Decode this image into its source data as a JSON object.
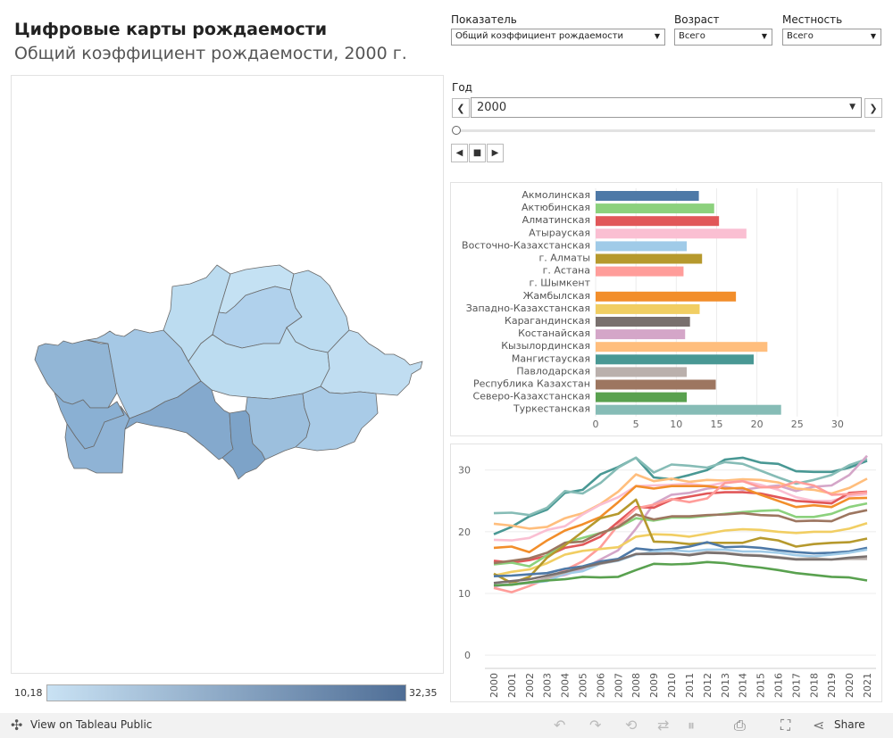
{
  "header": {
    "title": "Цифровые карты рождаемости",
    "subtitle": "Общий коэффициент рождаемости, 2000 г."
  },
  "filters": {
    "indicator": {
      "label": "Показатель",
      "value": "Общий коэффициент рождаемости"
    },
    "age": {
      "label": "Возраст",
      "value": "Всего"
    },
    "location": {
      "label": "Местность",
      "value": "Всего"
    }
  },
  "year": {
    "label": "Год",
    "value": "2000"
  },
  "legend": {
    "min": "10,18",
    "max": "32,35",
    "color_low": "#c9e2f4",
    "color_high": "#4f6e96"
  },
  "map": {
    "regions": [
      {
        "name": "Западно-Казахстанская",
        "color": "#92b6d6"
      },
      {
        "name": "Атырауская",
        "color": "#8ab0d3"
      },
      {
        "name": "Мангистауская",
        "color": "#8fb3d5"
      },
      {
        "name": "Актюбинская",
        "color": "#a5c8e5"
      },
      {
        "name": "Костанайская",
        "color": "#bcdcf0"
      },
      {
        "name": "Северо-Казахстанская",
        "color": "#c4e1f3"
      },
      {
        "name": "Акмолинская",
        "color": "#b0d1ec"
      },
      {
        "name": "Павлодарская",
        "color": "#bbdbf0"
      },
      {
        "name": "Карагандинская",
        "color": "#bcdcf0"
      },
      {
        "name": "Восточно-Казахстанская",
        "color": "#c0ddf1"
      },
      {
        "name": "Кызылординская",
        "color": "#84a9cd"
      },
      {
        "name": "Туркестанская",
        "color": "#7da3c8"
      },
      {
        "name": "Жамбылская",
        "color": "#9cbfdd"
      },
      {
        "name": "Алматинская",
        "color": "#a9cbe7"
      }
    ]
  },
  "footer": {
    "view_link": "View on Tableau Public",
    "share": "Share"
  },
  "chart_data": [
    {
      "type": "bar",
      "orientation": "horizontal",
      "categories": [
        "Акмолинская",
        "Актюбинская",
        "Алматинская",
        "Атырауская",
        "Восточно-Казахстанская",
        "г. Алматы",
        "г. Астана",
        "г. Шымкент",
        "Жамбылская",
        "Западно-Казахстанская",
        "Карагандинская",
        "Костанайская",
        "Кызылординская",
        "Мангистауская",
        "Павлодарская",
        "Республика Казахстан",
        "Северо-Казахстанская",
        "Туркестанская"
      ],
      "values": [
        12.8,
        14.7,
        15.3,
        18.7,
        11.3,
        13.2,
        10.9,
        null,
        17.4,
        12.9,
        11.7,
        11.1,
        21.3,
        19.6,
        11.3,
        14.9,
        11.3,
        23.0
      ],
      "colors": [
        "#4e79a7",
        "#8cd17d",
        "#e15759",
        "#fabfd2",
        "#a0cbe8",
        "#b6992d",
        "#ff9d9a",
        "#bab0ac",
        "#f28e2b",
        "#f1ce63",
        "#79706e",
        "#d4a6c8",
        "#ffbe7d",
        "#499894",
        "#bab0ac",
        "#9d7660",
        "#59a14f",
        "#86bcb6"
      ],
      "xticks": [
        "0",
        "5",
        "10",
        "15",
        "20",
        "25",
        "30"
      ],
      "xlim": [
        0,
        33
      ]
    },
    {
      "type": "line",
      "x": [
        "2000",
        "2001",
        "2002",
        "2003",
        "2004",
        "2005",
        "2006",
        "2007",
        "2008",
        "2009",
        "2010",
        "2011",
        "2012",
        "2013",
        "2014",
        "2015",
        "2016",
        "2017",
        "2018",
        "2019",
        "2020",
        "2021"
      ],
      "yticks": [
        "0",
        "10",
        "20",
        "30"
      ],
      "ylim": [
        -2,
        33
      ],
      "series": [
        {
          "color": "#499894",
          "values": [
            19.6,
            20.8,
            22.5,
            23.6,
            26.3,
            26.8,
            29.3,
            30.5,
            32.0,
            28.8,
            28.5,
            29.2,
            30.0,
            31.7,
            32.0,
            31.2,
            31.0,
            29.8,
            29.7,
            29.7,
            30.4,
            31.5
          ]
        },
        {
          "color": "#86bcb6",
          "values": [
            23.0,
            23.1,
            22.7,
            23.9,
            26.6,
            26.2,
            27.9,
            30.4,
            32.0,
            29.6,
            30.9,
            30.7,
            30.4,
            31.3,
            31.0,
            29.9,
            28.8,
            27.8,
            28.4,
            29.2,
            30.8,
            31.8
          ]
        },
        {
          "color": "#d4a6c8",
          "values": [
            11.1,
            11.6,
            11.8,
            12.5,
            13.0,
            14.0,
            15.5,
            17.0,
            20.5,
            24.5,
            26.0,
            26.3,
            27.0,
            27.3,
            26.8,
            27.2,
            27.5,
            26.6,
            27.3,
            27.5,
            29.2,
            32.3
          ]
        },
        {
          "color": "#ffbe7d",
          "values": [
            21.3,
            21.0,
            20.5,
            20.8,
            22.2,
            23.0,
            24.5,
            26.5,
            29.3,
            28.2,
            28.6,
            28.1,
            28.4,
            28.3,
            28.5,
            28.4,
            28.0,
            27.0,
            26.8,
            26.2,
            27.1,
            28.6
          ]
        },
        {
          "color": "#fabfd2",
          "values": [
            18.7,
            18.6,
            19.0,
            20.3,
            20.9,
            22.8,
            24.4,
            25.6,
            27.4,
            27.5,
            27.6,
            27.8,
            27.4,
            28.0,
            28.2,
            27.6,
            26.8,
            25.6,
            25.0,
            25.0,
            25.8,
            26.1
          ]
        },
        {
          "color": "#e15759",
          "values": [
            15.3,
            15.0,
            15.4,
            16.1,
            17.4,
            17.9,
            19.2,
            21.6,
            24.0,
            23.9,
            25.2,
            25.7,
            26.2,
            26.4,
            26.4,
            26.2,
            25.6,
            25.0,
            24.8,
            24.6,
            26.3,
            26.5
          ]
        },
        {
          "color": "#f28e2b",
          "values": [
            17.4,
            17.6,
            16.7,
            18.6,
            20.2,
            21.2,
            22.4,
            24.8,
            27.4,
            27.0,
            27.4,
            27.4,
            27.4,
            27.0,
            27.1,
            26.0,
            25.0,
            24.0,
            24.3,
            24.0,
            25.4,
            25.5
          ]
        },
        {
          "color": "#ff9d9a",
          "values": [
            10.9,
            10.2,
            11.2,
            12.4,
            13.8,
            15.2,
            17.5,
            21.1,
            23.8,
            24.4,
            25.3,
            24.8,
            25.4,
            27.9,
            28.2,
            27.2,
            27.2,
            28.1,
            27.5,
            26.0,
            26.1,
            26.4
          ]
        },
        {
          "color": "#8cd17d",
          "values": [
            14.7,
            15.0,
            14.4,
            16.2,
            18.2,
            19.0,
            19.8,
            20.7,
            22.2,
            21.8,
            22.3,
            22.3,
            22.6,
            22.9,
            23.2,
            23.4,
            23.5,
            22.4,
            22.4,
            22.9,
            24.0,
            24.6
          ]
        },
        {
          "color": "#9d7660",
          "values": [
            14.9,
            15.3,
            15.7,
            16.6,
            18.2,
            18.4,
            19.8,
            20.8,
            22.8,
            22.0,
            22.5,
            22.5,
            22.7,
            22.8,
            23.0,
            22.7,
            22.6,
            21.7,
            21.8,
            21.7,
            22.9,
            23.5
          ]
        },
        {
          "color": "#f1ce63",
          "values": [
            12.9,
            13.5,
            13.9,
            14.9,
            16.3,
            16.9,
            17.2,
            17.5,
            19.2,
            19.6,
            19.5,
            19.2,
            19.7,
            20.2,
            20.4,
            20.3,
            20.0,
            19.8,
            20.0,
            20.0,
            20.5,
            21.4
          ]
        },
        {
          "color": "#b6992d",
          "values": [
            13.2,
            11.7,
            12.7,
            15.8,
            17.8,
            20.0,
            22.2,
            22.9,
            25.2,
            18.4,
            18.3,
            18.0,
            18.2,
            18.2,
            18.2,
            19.0,
            18.6,
            17.6,
            18.0,
            18.2,
            18.3,
            18.9
          ]
        },
        {
          "color": "#4e79a7",
          "values": [
            12.8,
            12.9,
            13.1,
            13.3,
            14.0,
            14.4,
            15.2,
            15.6,
            17.3,
            17.0,
            17.2,
            17.6,
            18.3,
            17.5,
            17.6,
            17.4,
            17.0,
            16.7,
            16.5,
            16.6,
            16.8,
            17.4
          ]
        },
        {
          "color": "#a0cbe8",
          "values": [
            11.3,
            11.5,
            11.7,
            12.0,
            13.2,
            13.6,
            14.8,
            15.3,
            16.3,
            16.8,
            17.0,
            16.8,
            17.1,
            17.1,
            16.8,
            16.8,
            16.6,
            16.2,
            16.0,
            16.3,
            16.6,
            17.1
          ]
        },
        {
          "color": "#bab0ac",
          "values": [
            11.3,
            11.5,
            11.7,
            12.5,
            13.4,
            14.2,
            14.8,
            15.4,
            16.4,
            16.5,
            16.4,
            16.3,
            16.7,
            16.6,
            16.3,
            16.2,
            15.9,
            15.6,
            15.7,
            15.5,
            15.6,
            15.6
          ]
        },
        {
          "color": "#79706e",
          "values": [
            11.7,
            12.0,
            12.3,
            12.9,
            13.5,
            14.2,
            14.9,
            15.4,
            16.4,
            16.4,
            16.5,
            16.2,
            16.6,
            16.5,
            16.2,
            16.1,
            15.8,
            15.5,
            15.5,
            15.5,
            15.8,
            16.0
          ]
        },
        {
          "color": "#59a14f",
          "values": [
            11.3,
            11.4,
            11.8,
            12.1,
            12.3,
            12.7,
            12.6,
            12.7,
            13.8,
            14.8,
            14.7,
            14.8,
            15.1,
            14.9,
            14.5,
            14.2,
            13.8,
            13.3,
            13.0,
            12.7,
            12.6,
            12.1
          ]
        }
      ]
    }
  ]
}
